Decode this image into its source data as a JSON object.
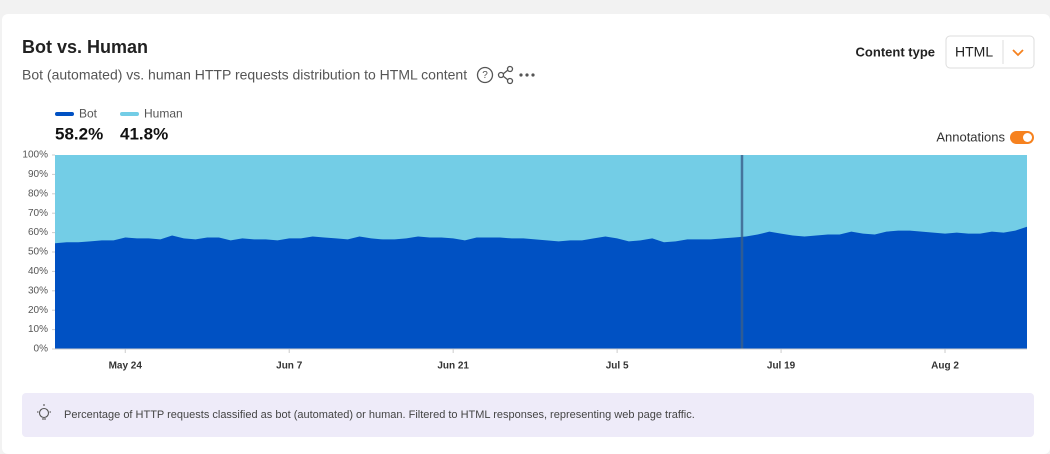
{
  "header": {
    "title": "Bot vs. Human",
    "subtitle": "Bot (automated) vs. human HTTP requests distribution to HTML content"
  },
  "controls": {
    "content_type_label": "Content type",
    "content_type_value": "HTML",
    "annotations_label": "Annotations"
  },
  "chart_data": {
    "type": "area",
    "stacked": true,
    "categories": [
      null,
      null,
      null,
      null,
      null,
      null,
      "May 24",
      null,
      null,
      null,
      null,
      null,
      null,
      null,
      null,
      null,
      null,
      null,
      null,
      null,
      "Jun 7",
      null,
      null,
      null,
      null,
      null,
      null,
      null,
      null,
      null,
      null,
      null,
      null,
      null,
      "Jun 21",
      null,
      null,
      null,
      null,
      null,
      null,
      null,
      null,
      null,
      null,
      null,
      null,
      null,
      "Jul 5",
      null,
      null,
      null,
      null,
      null,
      null,
      null,
      null,
      null,
      null,
      null,
      null,
      null,
      "Jul 19",
      null,
      null,
      null,
      null,
      null,
      null,
      null,
      null,
      null,
      null,
      null,
      null,
      null,
      "Aug 2",
      null,
      null,
      null,
      null,
      null,
      null,
      null
    ],
    "series": [
      {
        "name": "Bot",
        "color": "#0051c3",
        "share_label": "58.2%",
        "values": [
          54.5,
          55,
          55,
          55.5,
          56,
          56,
          57.5,
          57,
          57,
          56.5,
          58.5,
          57,
          56.5,
          57.5,
          57.5,
          56,
          57,
          56.5,
          56.5,
          56,
          57,
          57,
          58,
          57.5,
          57,
          56.5,
          58,
          57,
          56.5,
          56.5,
          57,
          58,
          57.5,
          57.5,
          57,
          56,
          57.5,
          57.5,
          57.5,
          57,
          57,
          56.5,
          56,
          55.5,
          56,
          56,
          57,
          58,
          57,
          55.5,
          56,
          57,
          55,
          55.5,
          56.5,
          56.5,
          56.5,
          57,
          57.5,
          58,
          59,
          60.5,
          59.5,
          58.5,
          58,
          58.5,
          59,
          59,
          60.5,
          59.5,
          59,
          60.5,
          61,
          61,
          60.5,
          60,
          59.5,
          60,
          59.5,
          59.5,
          60.5,
          60,
          61,
          63
        ]
      },
      {
        "name": "Human",
        "color": "#73cde6",
        "share_label": "41.8%",
        "values": [
          45.5,
          45,
          45,
          44.5,
          44,
          44,
          42.5,
          43,
          43,
          43.5,
          41.5,
          43,
          43.5,
          42.5,
          42.5,
          44,
          43,
          43.5,
          43.5,
          44,
          43,
          43,
          42,
          42.5,
          43,
          43.5,
          42,
          43,
          43.5,
          43.5,
          43,
          42,
          42.5,
          42.5,
          43,
          44,
          42.5,
          42.5,
          42.5,
          43,
          43,
          43.5,
          44,
          44.5,
          44,
          44,
          43,
          42,
          43,
          44.5,
          44,
          43,
          45,
          44.5,
          43.5,
          43.5,
          43.5,
          43,
          42.5,
          42,
          41,
          39.5,
          40.5,
          41.5,
          42,
          41.5,
          41,
          41,
          39.5,
          40.5,
          41,
          39.5,
          39,
          39,
          39.5,
          40,
          40.5,
          40,
          40.5,
          40.5,
          39.5,
          40,
          39,
          37
        ]
      }
    ],
    "ylim": [
      0,
      100
    ],
    "yticks": [
      {
        "value": 0,
        "label": "0%"
      },
      {
        "value": 10,
        "label": "10%"
      },
      {
        "value": 20,
        "label": "20%"
      },
      {
        "value": 30,
        "label": "30%"
      },
      {
        "value": 40,
        "label": "40%"
      },
      {
        "value": 50,
        "label": "50%"
      },
      {
        "value": 60,
        "label": "60%"
      },
      {
        "value": 70,
        "label": "70%"
      },
      {
        "value": 80,
        "label": "80%"
      },
      {
        "value": 90,
        "label": "90%"
      },
      {
        "value": 100,
        "label": "100%"
      }
    ],
    "grid": false
  },
  "footnote": "Percentage of HTTP requests classified as bot (automated) or human. Filtered to HTML responses, representing web page traffic."
}
